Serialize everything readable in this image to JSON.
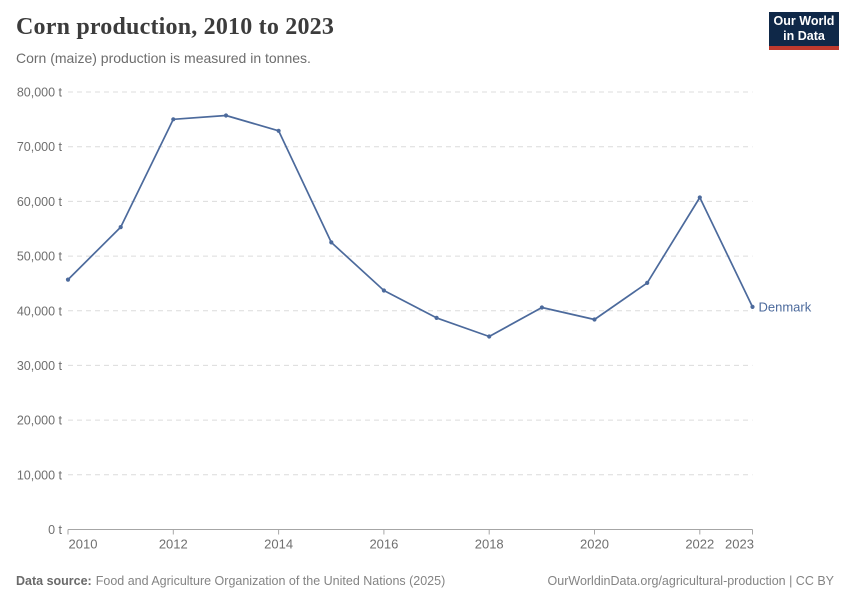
{
  "header": {
    "title": "Corn production, 2010 to 2023",
    "subtitle": "Corn (maize) production is measured in tonnes."
  },
  "logo": {
    "line1": "Our World",
    "line2": "in Data",
    "bg_color": "#0f2848",
    "accent_color": "#bf3a2e"
  },
  "chart_data": {
    "type": "line",
    "title": "Corn production, 2010 to 2023",
    "unit": "t",
    "entity_label": "Denmark",
    "x": [
      2010,
      2011,
      2012,
      2013,
      2014,
      2015,
      2016,
      2017,
      2018,
      2019,
      2020,
      2021,
      2022,
      2023
    ],
    "series": [
      {
        "name": "Denmark",
        "color": "#4c6a9c",
        "values": [
          45700,
          55300,
          75000,
          75700,
          72900,
          52500,
          43700,
          38700,
          35300,
          40600,
          38400,
          45100,
          60700,
          40700
        ]
      }
    ],
    "ylim": [
      0,
      80000
    ],
    "yticks": {
      "values": [
        0,
        10000,
        20000,
        30000,
        40000,
        50000,
        60000,
        70000,
        80000
      ],
      "labels": [
        "0 t",
        "10,000 t",
        "20,000 t",
        "30,000 t",
        "40,000 t",
        "50,000 t",
        "60,000 t",
        "70,000 t",
        "80,000 t"
      ]
    },
    "xticks": {
      "values": [
        2010,
        2012,
        2014,
        2016,
        2018,
        2020,
        2022,
        2023
      ],
      "labels": [
        "2010",
        "2012",
        "2014",
        "2016",
        "2018",
        "2020",
        "2022",
        "2023"
      ]
    },
    "grid": "horizontal-dashed",
    "legend_position": "end-of-line",
    "colors": {
      "gridline": "#dcdcdc",
      "axis": "#a6a6a6",
      "tick_text": "#6f6f6f"
    }
  },
  "footer": {
    "source_label": "Data source:",
    "source_text": "Food and Agriculture Organization of the United Nations (2025)",
    "right_text": "OurWorldinData.org/agricultural-production | CC BY"
  }
}
